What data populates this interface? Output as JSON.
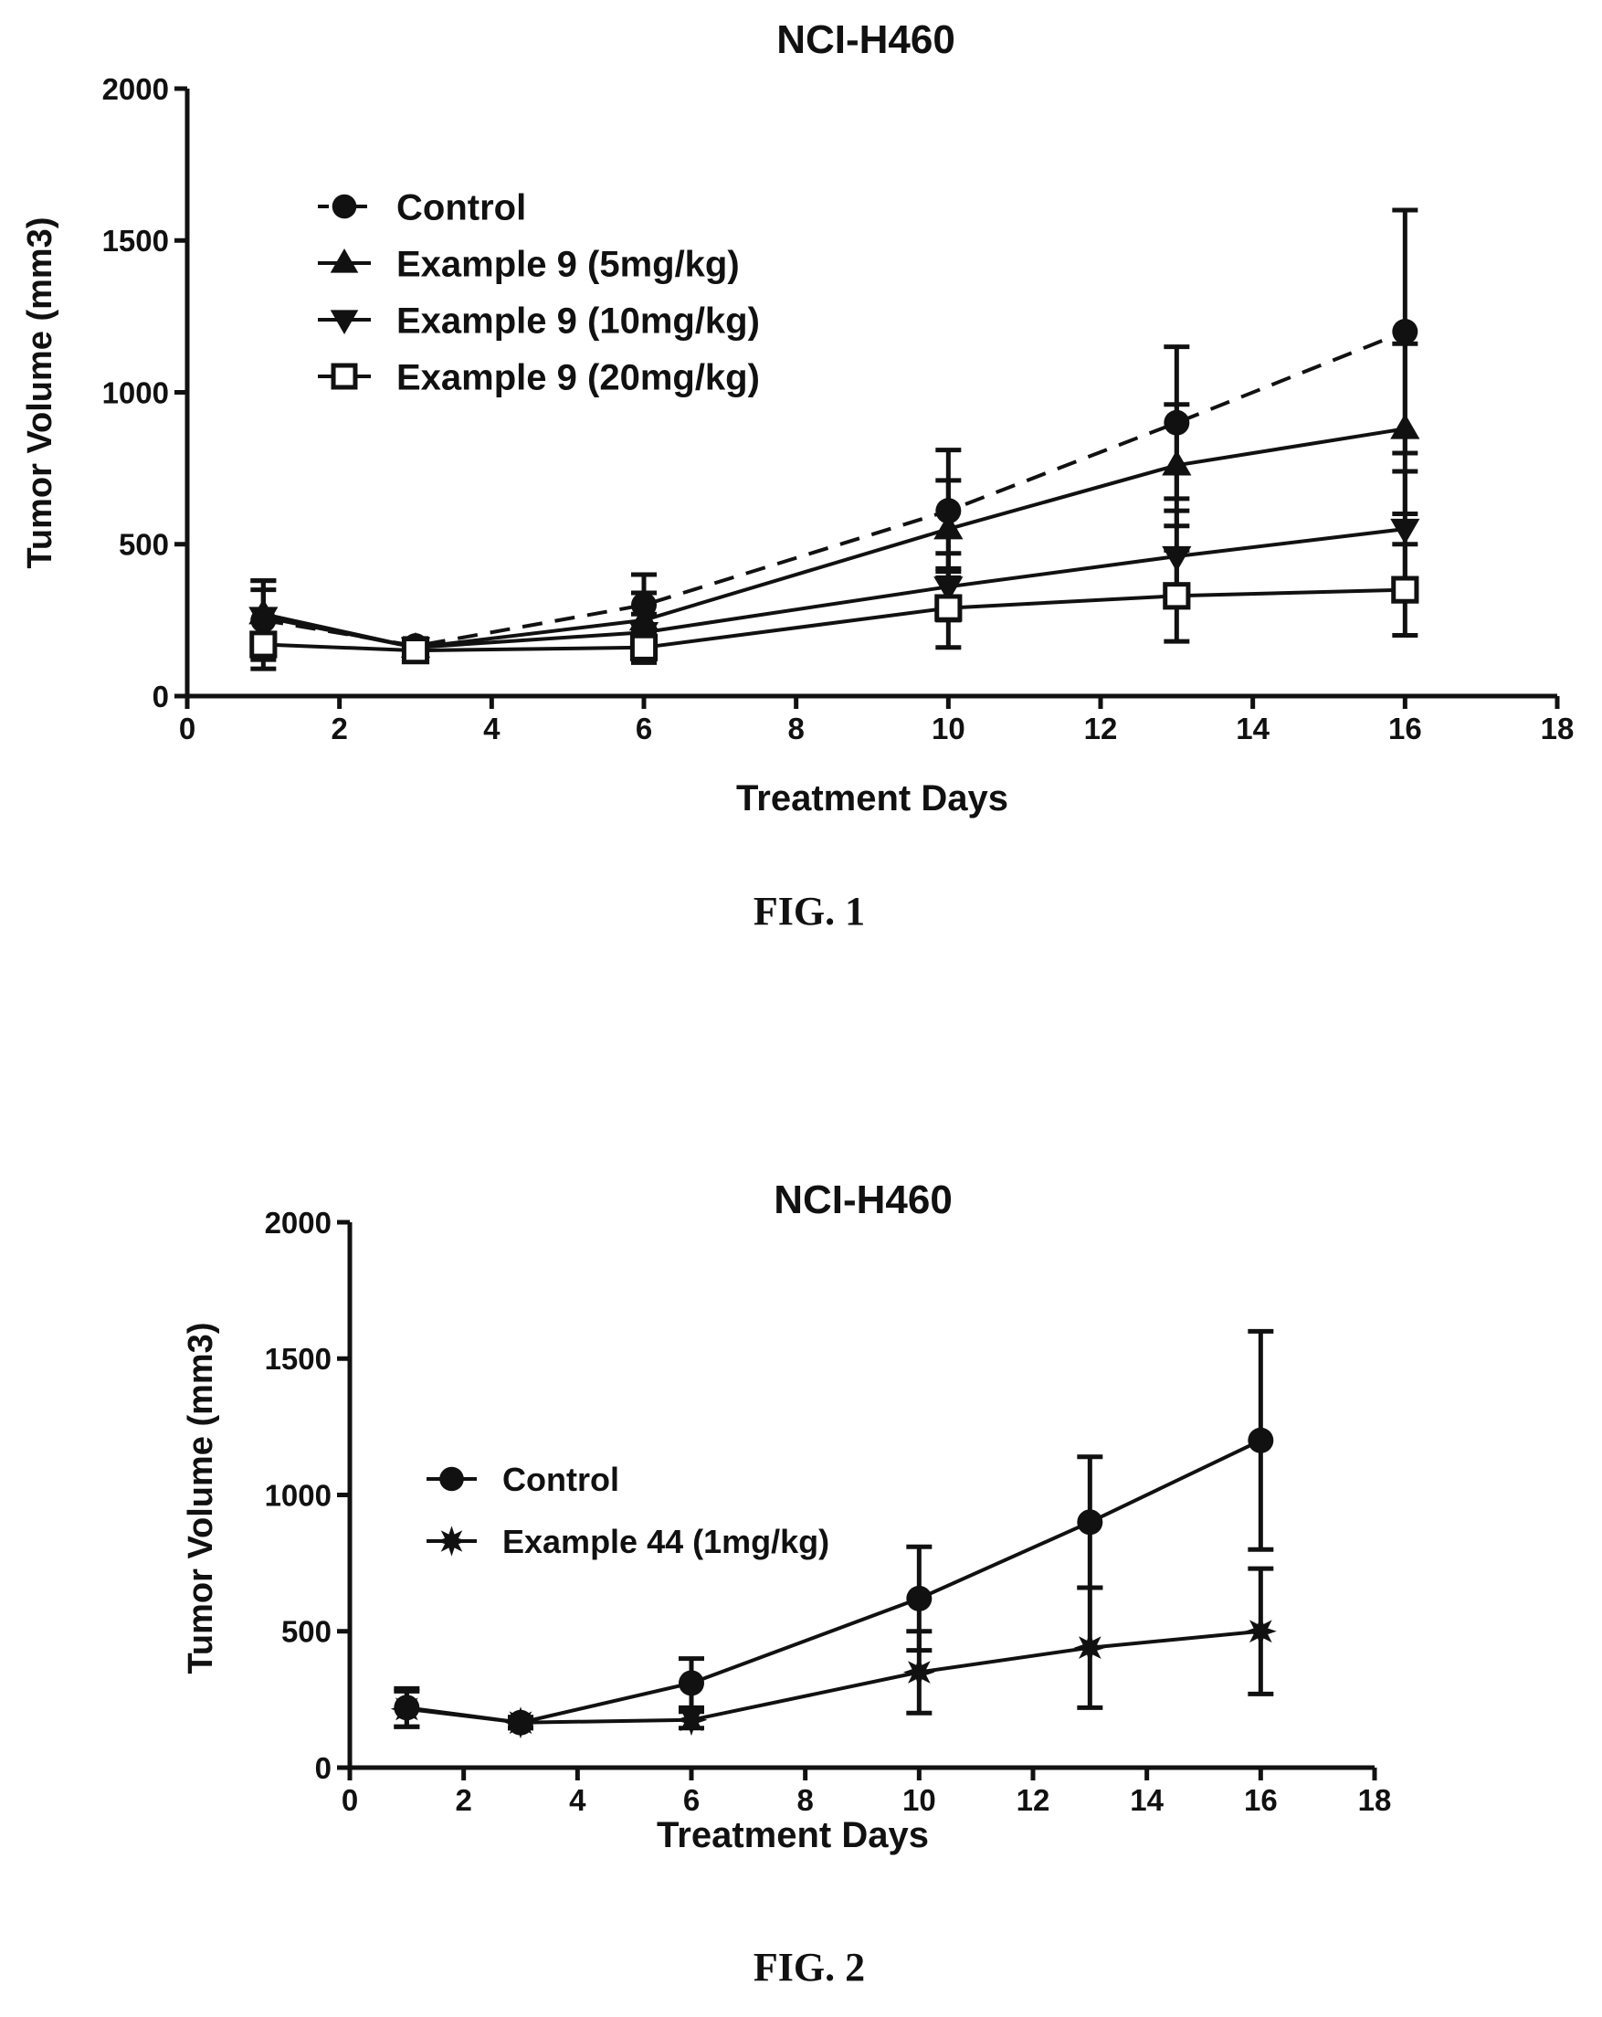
{
  "chart_data": [
    {
      "type": "line",
      "title": "NCI-H460",
      "caption": "FIG. 1",
      "xlabel": "Treatment Days",
      "ylabel": "Tumor Volume (mm3)",
      "xlim": [
        0,
        18
      ],
      "ylim": [
        0,
        2000
      ],
      "xticks": [
        "0",
        "2",
        "4",
        "6",
        "8",
        "10",
        "12",
        "14",
        "16",
        "18"
      ],
      "yticks": [
        "0",
        "500",
        "1000",
        "1500",
        "2000"
      ],
      "grid": false,
      "legend_position": "top-left",
      "x": [
        1,
        3,
        6,
        10,
        13,
        16
      ],
      "series": [
        {
          "name": "Control",
          "marker": "circle",
          "dashed": true,
          "color": "#111111",
          "values": [
            250,
            165,
            300,
            610,
            900,
            1200
          ],
          "err": [
            130,
            25,
            100,
            200,
            250,
            400
          ]
        },
        {
          "name": "Example 9 (5mg/kg)",
          "marker": "triangle-up",
          "dashed": false,
          "color": "#111111",
          "values": [
            270,
            160,
            250,
            550,
            760,
            880
          ],
          "err": [
            110,
            25,
            90,
            160,
            200,
            280
          ]
        },
        {
          "name": "Example 9 (10mg/kg)",
          "marker": "triangle-down",
          "dashed": false,
          "color": "#111111",
          "values": [
            260,
            160,
            210,
            360,
            460,
            550
          ],
          "err": [
            90,
            20,
            60,
            110,
            150,
            190
          ]
        },
        {
          "name": "Example 9 (20mg/kg)",
          "marker": "square-open",
          "dashed": false,
          "color": "#111111",
          "values": [
            170,
            150,
            160,
            290,
            330,
            350
          ],
          "err": [
            80,
            20,
            50,
            130,
            150,
            150
          ]
        }
      ]
    },
    {
      "type": "line",
      "title": "NCI-H460",
      "caption": "FIG. 2",
      "xlabel": "Treatment Days",
      "ylabel": "Tumor Volume (mm3)",
      "xlim": [
        0,
        18
      ],
      "ylim": [
        0,
        2000
      ],
      "xticks": [
        "0",
        "2",
        "4",
        "6",
        "8",
        "10",
        "12",
        "14",
        "16",
        "18"
      ],
      "yticks": [
        "0",
        "500",
        "1000",
        "1500",
        "2000"
      ],
      "grid": false,
      "legend_position": "left",
      "x": [
        1,
        3,
        6,
        10,
        13,
        16
      ],
      "series": [
        {
          "name": "Control",
          "marker": "circle",
          "dashed": false,
          "color": "#111111",
          "values": [
            220,
            165,
            310,
            620,
            900,
            1200
          ],
          "err": [
            70,
            20,
            90,
            190,
            240,
            400
          ]
        },
        {
          "name": "Example 44 (1mg/kg)",
          "marker": "star",
          "dashed": false,
          "color": "#111111",
          "values": [
            215,
            165,
            175,
            350,
            440,
            500
          ],
          "err": [
            65,
            20,
            30,
            150,
            220,
            230
          ]
        }
      ]
    }
  ]
}
